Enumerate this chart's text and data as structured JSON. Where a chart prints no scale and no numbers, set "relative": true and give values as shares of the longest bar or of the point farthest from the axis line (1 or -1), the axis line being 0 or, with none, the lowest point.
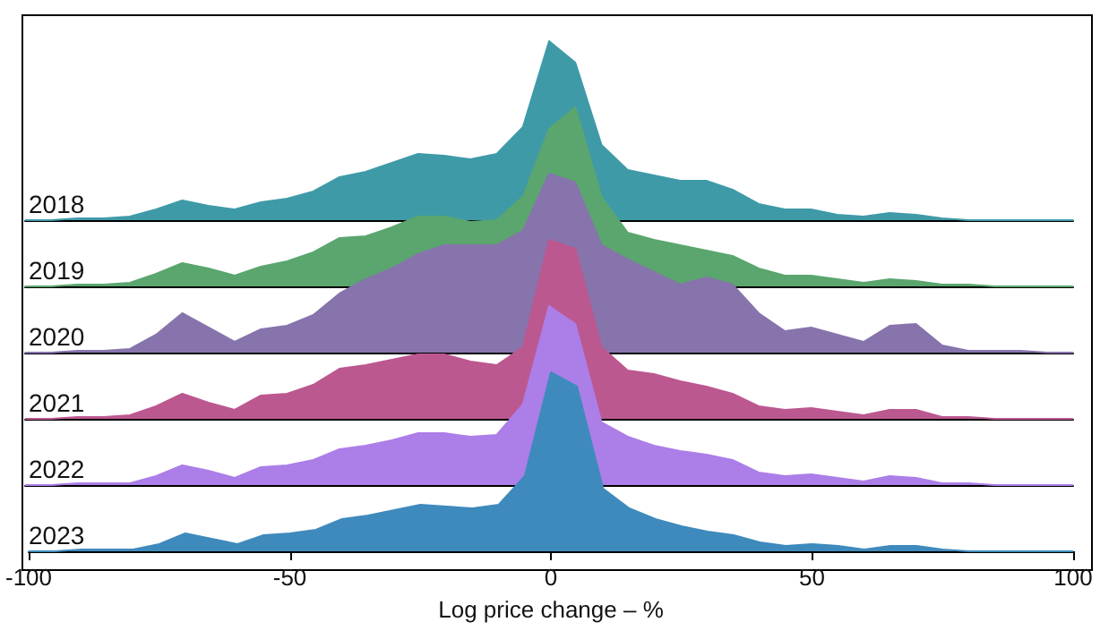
{
  "chart_data": [
    {
      "type": "area",
      "relative": true,
      "tick_labels": false,
      "categories": [
        null,
        null,
        null,
        null,
        null,
        null,
        null,
        null,
        null,
        null,
        null,
        null,
        null,
        null,
        null,
        null,
        null,
        null,
        null,
        null,
        null,
        null,
        null,
        null,
        null,
        null,
        null,
        null,
        null,
        null,
        null,
        null,
        null,
        null,
        null,
        null,
        null,
        null,
        null,
        null,
        null
      ],
      "series": [
        {
          "name": "2018",
          "color": "#3f9aa8",
          "values": [
            0,
            0,
            0.01,
            0.01,
            0.02,
            0.06,
            0.11,
            0.08,
            0.06,
            0.1,
            0.12,
            0.16,
            0.24,
            0.27,
            0.32,
            0.37,
            0.36,
            0.34,
            0.37,
            0.52,
            1,
            0.88,
            0.42,
            0.28,
            0.25,
            0.22,
            0.22,
            0.17,
            0.09,
            0.06,
            0.06,
            0.03,
            0.02,
            0.04,
            0.03,
            0.01,
            0,
            0,
            0,
            0,
            0
          ]
        }
      ]
    },
    {
      "type": "area",
      "relative": true,
      "tick_labels": false,
      "categories": [
        null,
        null,
        null,
        null,
        null,
        null,
        null,
        null,
        null,
        null,
        null,
        null,
        null,
        null,
        null,
        null,
        null,
        null,
        null,
        null,
        null,
        null,
        null,
        null,
        null,
        null,
        null,
        null,
        null,
        null,
        null,
        null,
        null,
        null,
        null,
        null,
        null,
        null,
        null,
        null,
        null
      ],
      "series": [
        {
          "name": "2019",
          "color": "#5aa66e",
          "values": [
            0,
            0,
            0.01,
            0.01,
            0.02,
            0.07,
            0.13,
            0.1,
            0.06,
            0.11,
            0.14,
            0.19,
            0.27,
            0.28,
            0.33,
            0.39,
            0.39,
            0.36,
            0.37,
            0.5,
            0.88,
            1,
            0.5,
            0.3,
            0.26,
            0.23,
            0.2,
            0.17,
            0.1,
            0.06,
            0.06,
            0.04,
            0.02,
            0.04,
            0.03,
            0.01,
            0.01,
            0,
            0,
            0,
            0
          ]
        }
      ]
    },
    {
      "type": "area",
      "relative": true,
      "tick_labels": false,
      "categories": [
        null,
        null,
        null,
        null,
        null,
        null,
        null,
        null,
        null,
        null,
        null,
        null,
        null,
        null,
        null,
        null,
        null,
        null,
        null,
        null,
        null,
        null,
        null,
        null,
        null,
        null,
        null,
        null,
        null,
        null,
        null,
        null,
        null,
        null,
        null,
        null,
        null,
        null,
        null,
        null,
        null
      ],
      "series": [
        {
          "name": "2020",
          "color": "#8774ac",
          "values": [
            0,
            0,
            0.01,
            0.01,
            0.02,
            0.1,
            0.22,
            0.14,
            0.06,
            0.13,
            0.15,
            0.21,
            0.33,
            0.41,
            0.47,
            0.55,
            0.6,
            0.6,
            0.6,
            0.68,
            1,
            0.95,
            0.6,
            0.52,
            0.45,
            0.38,
            0.42,
            0.38,
            0.22,
            0.12,
            0.14,
            0.1,
            0.06,
            0.15,
            0.16,
            0.04,
            0.01,
            0.01,
            0.01,
            0,
            0
          ]
        }
      ]
    },
    {
      "type": "area",
      "relative": true,
      "tick_labels": false,
      "categories": [
        null,
        null,
        null,
        null,
        null,
        null,
        null,
        null,
        null,
        null,
        null,
        null,
        null,
        null,
        null,
        null,
        null,
        null,
        null,
        null,
        null,
        null,
        null,
        null,
        null,
        null,
        null,
        null,
        null,
        null,
        null,
        null,
        null,
        null,
        null,
        null,
        null,
        null,
        null,
        null,
        null
      ],
      "series": [
        {
          "name": "2021",
          "color": "#bc5890",
          "values": [
            0,
            0,
            0.01,
            0.01,
            0.02,
            0.07,
            0.14,
            0.09,
            0.05,
            0.13,
            0.14,
            0.19,
            0.28,
            0.3,
            0.33,
            0.36,
            0.36,
            0.32,
            0.3,
            0.4,
            1,
            0.95,
            0.4,
            0.27,
            0.25,
            0.21,
            0.18,
            0.14,
            0.07,
            0.05,
            0.06,
            0.04,
            0.02,
            0.05,
            0.05,
            0.01,
            0.01,
            0,
            0,
            0,
            0
          ]
        }
      ]
    },
    {
      "type": "area",
      "relative": true,
      "tick_labels": false,
      "categories": [
        null,
        null,
        null,
        null,
        null,
        null,
        null,
        null,
        null,
        null,
        null,
        null,
        null,
        null,
        null,
        null,
        null,
        null,
        null,
        null,
        null,
        null,
        null,
        null,
        null,
        null,
        null,
        null,
        null,
        null,
        null,
        null,
        null,
        null,
        null,
        null,
        null,
        null,
        null,
        null,
        null
      ],
      "series": [
        {
          "name": "2022",
          "color": "#ac7ee8",
          "values": [
            0,
            0,
            0.01,
            0.01,
            0.01,
            0.05,
            0.11,
            0.08,
            0.04,
            0.1,
            0.11,
            0.14,
            0.2,
            0.22,
            0.25,
            0.29,
            0.29,
            0.27,
            0.28,
            0.45,
            1,
            0.9,
            0.35,
            0.27,
            0.22,
            0.19,
            0.17,
            0.14,
            0.07,
            0.05,
            0.06,
            0.04,
            0.02,
            0.05,
            0.04,
            0.01,
            0.01,
            0,
            0,
            0,
            0
          ]
        }
      ]
    },
    {
      "type": "area",
      "relative": true,
      "tick_labels": "x",
      "xlabel": "Log price change – %",
      "xlim": [
        -100,
        100
      ],
      "xticks": [
        -100,
        -50,
        0,
        50,
        100
      ],
      "x": [
        -100,
        -95,
        -90,
        -85,
        -80,
        -75,
        -70,
        -65,
        -60,
        -55,
        -50,
        -45,
        -40,
        -35,
        -30,
        -25,
        -20,
        -15,
        -10,
        -5,
        0,
        5,
        10,
        15,
        20,
        25,
        30,
        35,
        40,
        45,
        50,
        55,
        60,
        65,
        70,
        75,
        80,
        85,
        90,
        95,
        100
      ],
      "series": [
        {
          "name": "2023",
          "color": "#3f8abd",
          "values": [
            0,
            0,
            0.01,
            0.01,
            0.01,
            0.04,
            0.1,
            0.07,
            0.04,
            0.09,
            0.1,
            0.12,
            0.18,
            0.2,
            0.23,
            0.26,
            0.25,
            0.24,
            0.26,
            0.42,
            1,
            0.92,
            0.35,
            0.24,
            0.18,
            0.14,
            0.11,
            0.09,
            0.05,
            0.03,
            0.04,
            0.03,
            0.01,
            0.03,
            0.03,
            0.01,
            0,
            0,
            0,
            0,
            0
          ]
        }
      ]
    }
  ]
}
